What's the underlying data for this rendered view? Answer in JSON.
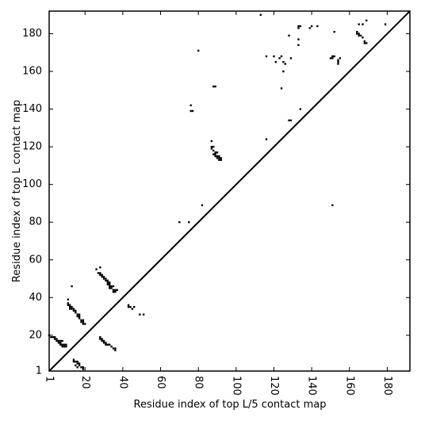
{
  "chart_data": {
    "type": "scatter",
    "subtype": "contact-map",
    "title": "",
    "xlabel": "Residue index of top L/5 contact map",
    "ylabel": "Residue index of top L contact map",
    "xlim": [
      1,
      192
    ],
    "ylim": [
      1,
      192
    ],
    "x_ticks": [
      "1",
      "20",
      "40",
      "60",
      "80",
      "100",
      "120",
      "140",
      "160",
      "180"
    ],
    "y_ticks": [
      "1",
      "20",
      "40",
      "60",
      "80",
      "100",
      "120",
      "140",
      "160",
      "180"
    ],
    "x_tick_rotation": 270,
    "grid": false,
    "legend": "none",
    "diagonal": {
      "from": [
        1,
        1
      ],
      "to": [
        192,
        192
      ],
      "color": "#000000"
    },
    "marker_color": "#000000",
    "series": [
      {
        "region": "upper-left",
        "points": [
          [
            113,
            190
          ],
          [
            133,
            183
          ],
          [
            133,
            184
          ],
          [
            134,
            184
          ],
          [
            139,
            183
          ],
          [
            140,
            184
          ],
          [
            143,
            184
          ],
          [
            128,
            179
          ],
          [
            133,
            177
          ],
          [
            133,
            174
          ],
          [
            165,
            185
          ],
          [
            167,
            185
          ],
          [
            169,
            187
          ],
          [
            179,
            185
          ],
          [
            152,
            181
          ],
          [
            164,
            181
          ],
          [
            165,
            180
          ],
          [
            166,
            179
          ],
          [
            167,
            178
          ],
          [
            168,
            176
          ],
          [
            169,
            175
          ],
          [
            164,
            180
          ],
          [
            165,
            179
          ],
          [
            168,
            175
          ],
          [
            152,
            168
          ],
          [
            151,
            168
          ],
          [
            150,
            167
          ],
          [
            151,
            167
          ],
          [
            154,
            166
          ],
          [
            154,
            165
          ],
          [
            154,
            164
          ],
          [
            155,
            167
          ],
          [
            116,
            168
          ],
          [
            120,
            168
          ],
          [
            121,
            165
          ],
          [
            123,
            167
          ],
          [
            124,
            168
          ],
          [
            125,
            165
          ],
          [
            126,
            164
          ],
          [
            125,
            160
          ],
          [
            129,
            167
          ],
          [
            124,
            151
          ],
          [
            88,
            152
          ],
          [
            89,
            152
          ],
          [
            80,
            171
          ],
          [
            76,
            142
          ],
          [
            76,
            139
          ],
          [
            77,
            139
          ],
          [
            128,
            134
          ],
          [
            129,
            134
          ],
          [
            134,
            140
          ],
          [
            87,
            123
          ],
          [
            116,
            124
          ],
          [
            87,
            120
          ],
          [
            88,
            120
          ],
          [
            87,
            119
          ],
          [
            88,
            118
          ],
          [
            89,
            117
          ],
          [
            90,
            117
          ],
          [
            88,
            116
          ],
          [
            89,
            116
          ],
          [
            89,
            115
          ],
          [
            90,
            115
          ],
          [
            91,
            115
          ],
          [
            90,
            114
          ],
          [
            91,
            114
          ],
          [
            92,
            114
          ],
          [
            92,
            113
          ],
          [
            91,
            113
          ],
          [
            151,
            89
          ],
          [
            82,
            89
          ],
          [
            70,
            80
          ],
          [
            75,
            80
          ]
        ]
      },
      {
        "region": "lower-right",
        "points": [
          [
            13,
            46
          ],
          [
            11,
            39
          ],
          [
            11,
            37
          ],
          [
            11,
            36
          ],
          [
            12,
            36
          ],
          [
            12,
            35
          ],
          [
            13,
            35
          ],
          [
            12,
            34
          ],
          [
            13,
            34
          ],
          [
            14,
            34
          ],
          [
            14,
            33
          ],
          [
            15,
            33
          ],
          [
            15,
            32
          ],
          [
            16,
            31
          ],
          [
            17,
            31
          ],
          [
            16,
            30
          ],
          [
            17,
            30
          ],
          [
            17,
            29
          ],
          [
            18,
            28
          ],
          [
            18,
            27
          ],
          [
            19,
            28
          ],
          [
            19,
            27
          ],
          [
            19,
            26
          ],
          [
            20,
            26
          ],
          [
            26,
            55
          ],
          [
            28,
            56
          ],
          [
            27,
            53
          ],
          [
            28,
            53
          ],
          [
            28,
            52
          ],
          [
            29,
            52
          ],
          [
            29,
            51
          ],
          [
            30,
            51
          ],
          [
            30,
            50
          ],
          [
            31,
            50
          ],
          [
            31,
            49
          ],
          [
            32,
            49
          ],
          [
            32,
            48
          ],
          [
            33,
            48
          ],
          [
            32,
            47
          ],
          [
            33,
            47
          ],
          [
            33,
            46
          ],
          [
            34,
            46
          ],
          [
            35,
            46
          ],
          [
            33,
            45
          ],
          [
            34,
            45
          ],
          [
            35,
            44
          ],
          [
            36,
            44
          ],
          [
            37,
            44
          ],
          [
            35,
            43
          ],
          [
            36,
            43
          ],
          [
            43,
            36
          ],
          [
            43,
            35
          ],
          [
            44,
            35
          ],
          [
            46,
            35
          ],
          [
            45,
            34
          ],
          [
            49,
            31
          ],
          [
            51,
            31
          ],
          [
            1,
            20
          ],
          [
            2,
            19
          ],
          [
            3,
            19
          ],
          [
            4,
            19
          ],
          [
            4,
            18
          ],
          [
            5,
            18
          ],
          [
            5,
            17
          ],
          [
            6,
            17
          ],
          [
            6,
            16
          ],
          [
            7,
            17
          ],
          [
            7,
            16
          ],
          [
            8,
            17
          ],
          [
            7,
            15
          ],
          [
            8,
            15
          ],
          [
            9,
            15
          ],
          [
            8,
            14
          ],
          [
            9,
            14
          ],
          [
            10,
            14
          ],
          [
            10,
            15
          ],
          [
            28,
            19
          ],
          [
            28,
            18
          ],
          [
            29,
            18
          ],
          [
            29,
            17
          ],
          [
            30,
            17
          ],
          [
            30,
            16
          ],
          [
            31,
            16
          ],
          [
            31,
            15
          ],
          [
            32,
            15
          ],
          [
            33,
            15
          ],
          [
            34,
            14
          ],
          [
            35,
            13
          ],
          [
            36,
            13
          ],
          [
            36,
            12
          ],
          [
            14,
            7
          ],
          [
            14,
            6
          ],
          [
            15,
            6
          ],
          [
            16,
            6
          ],
          [
            16,
            5
          ],
          [
            17,
            5
          ],
          [
            17,
            4
          ],
          [
            15,
            4
          ],
          [
            16,
            3
          ],
          [
            18,
            3
          ],
          [
            19,
            3
          ],
          [
            19,
            2
          ]
        ]
      }
    ]
  }
}
